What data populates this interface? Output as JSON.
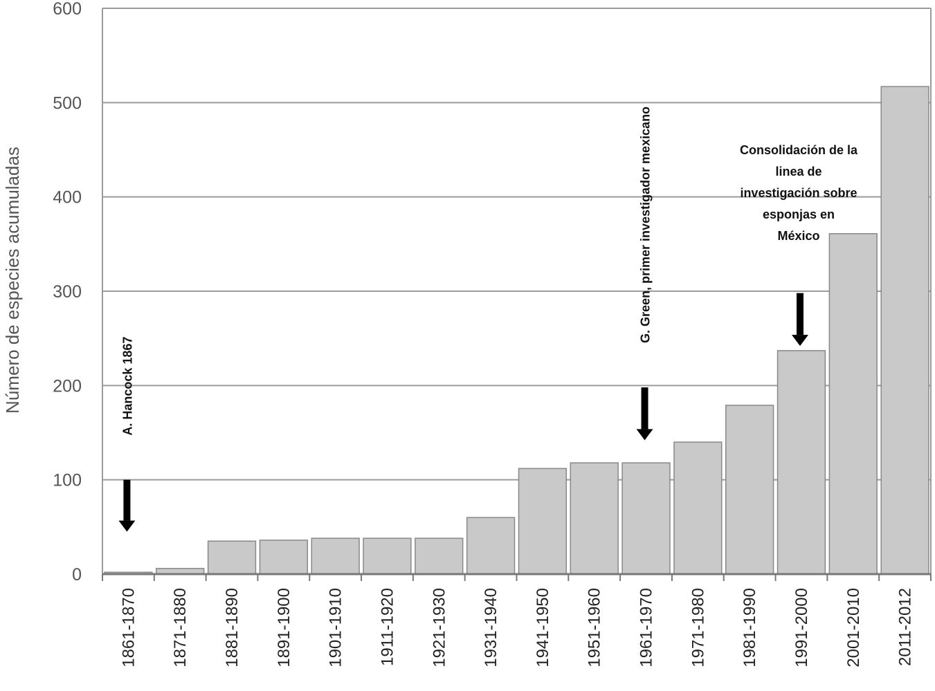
{
  "chart_data": {
    "type": "bar",
    "title": "",
    "xlabel": "",
    "ylabel": "Número de especies acumuladas",
    "ylim": [
      0,
      600
    ],
    "yticks": [
      0,
      100,
      200,
      300,
      400,
      500,
      600
    ],
    "grid": true,
    "categories": [
      "1861-1870",
      "1871-1880",
      "1881-1890",
      "1891-1900",
      "1901-1910",
      "1911-1920",
      "1921-1930",
      "1931-1940",
      "1941-1950",
      "1951-1960",
      "1961-1970",
      "1971-1980",
      "1981-1990",
      "1991-2000",
      "2001-2010",
      "2011-2012"
    ],
    "values": [
      2,
      6,
      35,
      36,
      38,
      38,
      38,
      60,
      112,
      118,
      118,
      140,
      179,
      237,
      361,
      517
    ],
    "bar_color": "#c9c9c9",
    "bar_edge_color": "#888888",
    "grid_color": "#9a9a9a",
    "annotations": [
      {
        "text_lines": [
          "A. Hancock 1867"
        ],
        "orientation": "vertical",
        "category": "1861-1870",
        "arrow_from": 100,
        "arrow_to": 45
      },
      {
        "text_lines": [
          "G. Green, primer investigador mexicano"
        ],
        "orientation": "vertical",
        "category": "1961-1970",
        "arrow_from": 198,
        "arrow_to": 142
      },
      {
        "text_lines": [
          "Consolidación de la",
          "linea de",
          "investigación sobre",
          "esponjas en",
          "México"
        ],
        "orientation": "horizontal",
        "category": "1991-2000",
        "arrow_from": 298,
        "arrow_to": 242
      }
    ]
  }
}
